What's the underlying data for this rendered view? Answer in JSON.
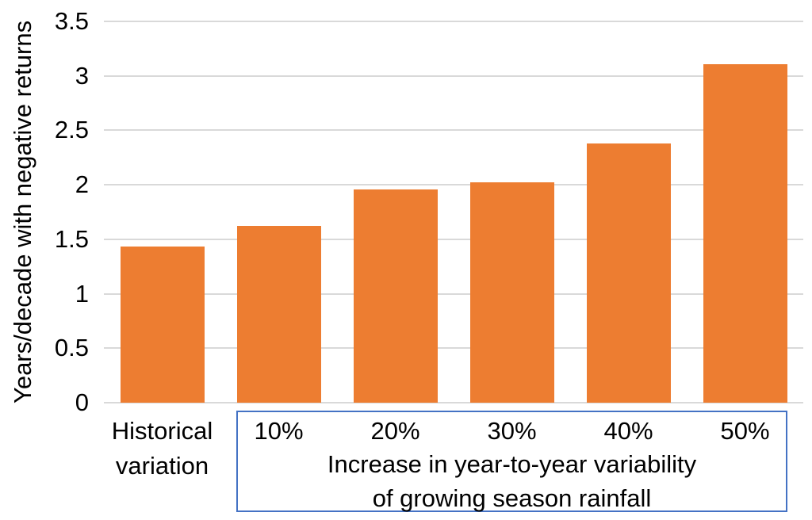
{
  "chart_data": {
    "type": "bar",
    "categories": [
      "Historical variation",
      "10%",
      "20%",
      "30%",
      "40%",
      "50%"
    ],
    "values": [
      1.43,
      1.62,
      1.96,
      2.02,
      2.38,
      3.11
    ],
    "title": "",
    "xlabel": "Increase in year-to-year variability of growing season rainfall",
    "xlabel_lines": [
      "Increase in year-to-year variability",
      "of growing season rainfall"
    ],
    "ylabel": "Years/decade with negative returns",
    "ylim": [
      0,
      3.5
    ],
    "yticks": [
      0,
      0.5,
      1,
      1.5,
      2,
      2.5,
      3,
      3.5
    ],
    "ytick_labels": [
      "0",
      "0.5",
      "1",
      "1.5",
      "2",
      "2.5",
      "3",
      "3.5"
    ],
    "grid": true,
    "legend": false,
    "group_box": {
      "applies_to": [
        "10%",
        "20%",
        "30%",
        "40%",
        "50%"
      ]
    },
    "colors": {
      "bar": "#ED7D31",
      "gridline": "#D9D9D9",
      "text": "#000000",
      "group_box_border": "#4472C4",
      "background": "#FFFFFF"
    }
  }
}
